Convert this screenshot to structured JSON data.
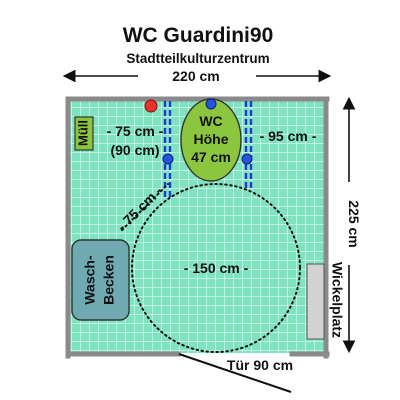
{
  "title": "WC Guardini90",
  "subtitle": "Stadtteilkulturzentrum",
  "dimensions": {
    "width": "220 cm",
    "depth": "225 cm",
    "left_clearance": "- 75 cm -",
    "left_clearance_alt": "(90 cm)",
    "right_clearance": "- 95 cm -",
    "front_clearance": "- 75 cm -",
    "turning_circle": "- 150 cm -",
    "door": "Tür 90 cm"
  },
  "fixtures": {
    "bin": "Müll",
    "toilet_line1": "WC",
    "toilet_line2": "Höhe",
    "toilet_line3": "47 cm",
    "sink_line1": "Wasch-",
    "sink_line2": "Becken",
    "changing_table": "Wickelplatz"
  },
  "colors": {
    "floor": "#7fe3c0",
    "tile_grid": "#ffffff",
    "wall": "#8a8a8a",
    "toilet": "#8cc63f",
    "sink": "#6faab2",
    "bin": "#8cc63f",
    "changing_table": "#d3d3d3",
    "grab_bar": "#1f3bd4",
    "grab_bar_knob": "#2255dd",
    "emergency_button": "#e8322b"
  }
}
